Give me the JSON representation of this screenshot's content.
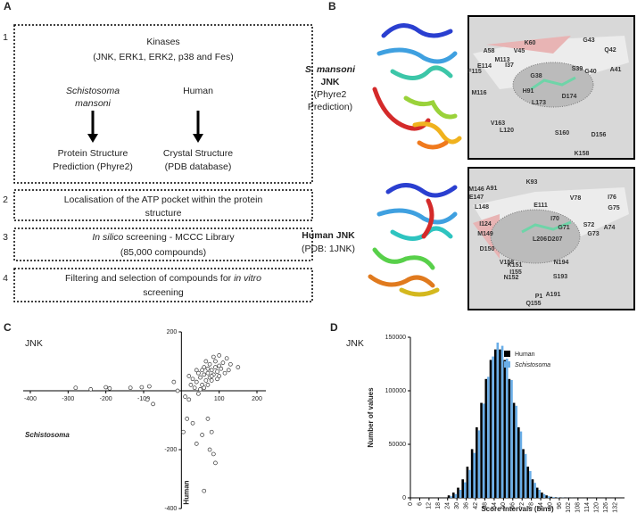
{
  "panel_labels": [
    "A",
    "B",
    "C",
    "D"
  ],
  "flowchart": {
    "steps": [
      {
        "number": 1,
        "lines": [
          [
            "Kinases"
          ],
          [
            "(JNK, ERK1, ERK2, p38 and Fes)"
          ]
        ],
        "columns": [
          {
            "head": [
              [
                {
                  "italic": "Schistosoma"
                }
              ],
              [
                {
                  "italic": "mansoni"
                }
              ]
            ],
            "result": [
              [
                "Protein Structure"
              ],
              [
                "Prediction (Phyre2)"
              ]
            ]
          },
          {
            "head": [
              [
                "Human"
              ]
            ],
            "result": [
              [
                "Crystal Structure"
              ],
              [
                "(PDB database)"
              ]
            ]
          }
        ]
      },
      {
        "number": 2,
        "lines": [
          [
            "Localisation of the ATP pocket within the protein"
          ],
          [
            "structure"
          ]
        ]
      },
      {
        "number": 3,
        "lines": [
          [
            {
              "italic": "In silico"
            },
            " screening - MCCC Library"
          ],
          [
            "(85,000 compounds)"
          ]
        ]
      },
      {
        "number": 4,
        "lines": [
          [
            "Filtering and selection of compounds for ",
            {
              "italic": "in vitro"
            }
          ],
          [
            "screening"
          ]
        ]
      }
    ]
  },
  "structures": [
    {
      "label": [
        [
          {
            "italic": "S. mansoni"
          }
        ],
        [
          "JNK"
        ],
        [
          "(Phyre2"
        ],
        [
          "Prediction)"
        ]
      ],
      "residues": [
        "A58",
        "V45",
        "K60",
        "G43",
        "Q42",
        "M113",
        "E114",
        "F115",
        "I37",
        "G38",
        "S39",
        "G40",
        "A41",
        "H91",
        "D174",
        "M116",
        "L173",
        "V163",
        "L120",
        "S160",
        "D156",
        "K158"
      ]
    },
    {
      "label": [
        [
          "Human JNK"
        ],
        [
          "(PDB: 1JNK)"
        ]
      ],
      "residues": [
        "K93",
        "M146",
        "A91",
        "E147",
        "I76",
        "V78",
        "L148",
        "E111",
        "G75",
        "I124",
        "I70",
        "S72",
        "A74",
        "M149",
        "G71",
        "G73",
        "L206",
        "D207",
        "D150",
        "V158",
        "K151",
        "N194",
        "I155",
        "N152",
        "S193",
        "A191",
        "P1",
        "Q155"
      ]
    }
  ],
  "chart_data": [
    {
      "type": "scatter",
      "title": "JNK",
      "x_label": "Schistosoma",
      "y_label": "Human",
      "x": [
        40,
        50,
        60,
        70,
        80,
        90,
        100,
        55,
        65,
        75,
        85,
        95,
        105,
        45,
        60,
        75,
        90,
        110,
        120,
        35,
        50,
        70,
        80,
        100,
        115,
        30,
        40,
        65,
        85,
        100,
        55,
        70,
        80,
        95,
        60,
        45,
        25,
        20,
        130,
        125,
        150,
        -280,
        -240,
        -200,
        -190,
        -135,
        -105,
        -85,
        -90,
        -75,
        -20,
        -10,
        10,
        15,
        5,
        30,
        40,
        70,
        80,
        75,
        85,
        90,
        55,
        60,
        20
      ],
      "values": [
        30,
        45,
        55,
        60,
        70,
        80,
        85,
        20,
        35,
        45,
        55,
        65,
        75,
        60,
        80,
        90,
        100,
        95,
        110,
        10,
        5,
        20,
        35,
        50,
        60,
        40,
        70,
        100,
        115,
        120,
        70,
        75,
        50,
        40,
        10,
        -10,
        20,
        50,
        90,
        70,
        80,
        10,
        5,
        12,
        8,
        10,
        12,
        15,
        -30,
        -45,
        30,
        0,
        -20,
        -95,
        -140,
        -110,
        -180,
        -95,
        -140,
        -200,
        -215,
        -245,
        -150,
        -340,
        -30
      ],
      "xlim": [
        -400,
        200
      ],
      "ylim": [
        -400,
        200
      ],
      "xticks": [
        -400,
        -300,
        -200,
        -100,
        100,
        200
      ],
      "yticks": [
        -400,
        -200,
        200
      ]
    },
    {
      "type": "histogram",
      "title": "JNK",
      "x_label": "Score Intervals (bins)",
      "y_label": "Number of values",
      "bins": [
        24,
        27,
        30,
        33,
        36,
        39,
        42,
        45,
        48,
        51,
        54,
        57,
        60,
        63,
        66,
        69,
        72,
        75,
        78,
        81,
        84,
        87,
        90,
        93,
        96,
        99,
        102,
        105,
        108,
        111
      ],
      "series": [
        {
          "name": "Human",
          "color": "#000000",
          "values": [
            2300,
            4900,
            9500,
            17300,
            29100,
            45500,
            65900,
            88700,
            111000,
            128800,
            138600,
            138600,
            128800,
            111000,
            88700,
            65900,
            45500,
            29100,
            17300,
            9500,
            4900,
            2300,
            1000,
            500,
            200,
            100,
            50,
            20,
            10
          ]
        },
        {
          "name": "Schistosoma",
          "color": "#6aaee8",
          "values": [
            1500,
            3500,
            7500,
            14500,
            26000,
            42000,
            63000,
            88000,
            113000,
            132000,
            145000,
            142000,
            130000,
            110000,
            86000,
            62000,
            41000,
            25000,
            14000,
            7500,
            3500,
            1500,
            700,
            300,
            150,
            80,
            40,
            15,
            5
          ]
        }
      ],
      "xlim": [
        0,
        138
      ],
      "ylim": [
        0,
        150000
      ],
      "xticks": [
        0,
        6,
        12,
        18,
        24,
        30,
        36,
        42,
        48,
        54,
        60,
        66,
        72,
        78,
        84,
        90,
        96,
        102,
        108,
        114,
        120,
        126,
        132
      ],
      "yticks": [
        0,
        50000,
        100000,
        150000
      ],
      "legend": "top-right"
    }
  ]
}
